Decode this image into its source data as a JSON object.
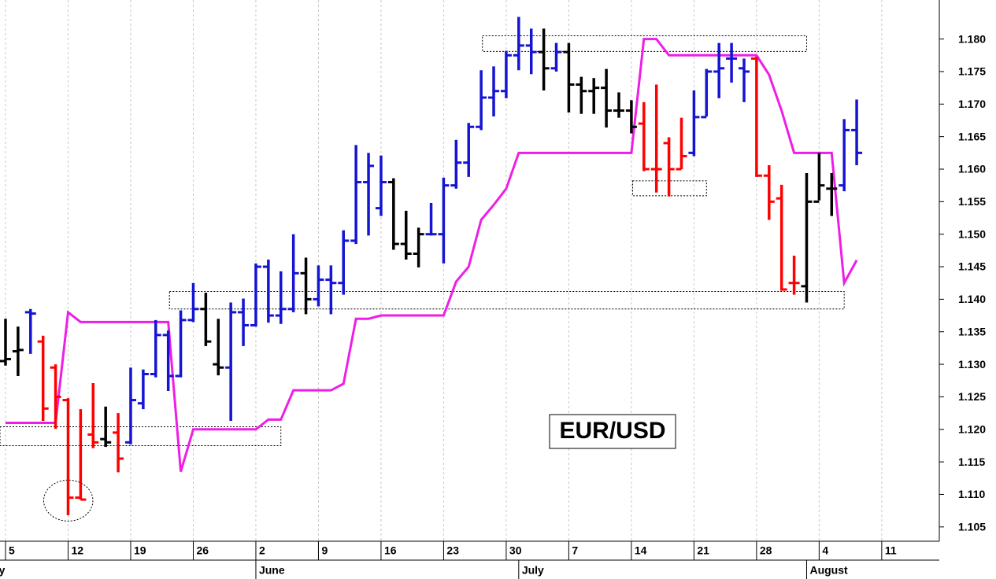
{
  "chart_data": {
    "type": "ohlc",
    "label": "EUR/USD",
    "x": [
      0,
      1,
      2,
      3,
      4,
      5,
      6,
      7,
      8,
      9,
      10,
      11,
      12,
      13,
      14,
      15,
      16,
      17,
      18,
      19,
      20,
      21,
      22,
      23,
      24,
      25,
      26,
      27,
      28,
      29,
      30,
      31,
      32,
      33,
      34,
      35,
      36,
      37,
      38,
      39,
      40,
      41,
      42,
      43,
      44,
      45,
      46,
      47,
      48,
      49,
      50,
      51,
      52,
      53,
      54,
      55,
      56,
      57,
      58,
      59,
      60,
      61,
      62,
      63,
      64,
      65,
      66,
      67,
      68
    ],
    "open": [
      1.1305,
      1.132,
      1.138,
      1.1335,
      1.1295,
      1.1245,
      1.1095,
      1.1192,
      1.1185,
      1.1195,
      1.118,
      1.124,
      1.1285,
      1.1345,
      1.1282,
      1.1368,
      1.1385,
      1.13,
      1.1295,
      1.138,
      1.136,
      1.145,
      1.1375,
      1.1385,
      1.144,
      1.14,
      1.143,
      1.1425,
      1.149,
      1.158,
      1.154,
      1.158,
      1.1485,
      1.147,
      1.15,
      1.15,
      1.1575,
      1.161,
      1.1665,
      1.171,
      1.172,
      1.1775,
      1.179,
      1.178,
      1.1755,
      1.178,
      1.173,
      1.172,
      1.1725,
      1.169,
      1.169,
      1.167,
      1.16,
      1.164,
      1.16,
      1.1625,
      1.168,
      1.175,
      1.177,
      1.1755,
      1.177,
      1.159,
      1.1555,
      1.1425,
      1.142,
      1.155,
      1.157,
      1.1575,
      1.166
    ],
    "high": [
      1.137,
      1.1358,
      1.1385,
      1.1344,
      1.13,
      1.1248,
      1.1231,
      1.1271,
      1.1235,
      1.1225,
      1.1295,
      1.1292,
      1.1368,
      1.1352,
      1.1383,
      1.1425,
      1.141,
      1.137,
      1.1395,
      1.1401,
      1.1455,
      1.1461,
      1.1443,
      1.15,
      1.1464,
      1.1452,
      1.1452,
      1.1506,
      1.1637,
      1.1625,
      1.1621,
      1.1586,
      1.1536,
      1.151,
      1.1548,
      1.1587,
      1.1645,
      1.1671,
      1.1752,
      1.1758,
      1.1782,
      1.1834,
      1.1816,
      1.1816,
      1.1794,
      1.1794,
      1.1742,
      1.174,
      1.1754,
      1.1718,
      1.1706,
      1.1703,
      1.173,
      1.1649,
      1.1679,
      1.1721,
      1.1754,
      1.1794,
      1.1794,
      1.177,
      1.1773,
      1.1606,
      1.1576,
      1.1467,
      1.1594,
      1.1625,
      1.1594,
      1.1677,
      1.1707
    ],
    "low": [
      1.1298,
      1.1282,
      1.1316,
      1.1213,
      1.1201,
      1.1068,
      1.1092,
      1.1171,
      1.1173,
      1.1134,
      1.1177,
      1.1231,
      1.128,
      1.1259,
      1.128,
      1.1365,
      1.1328,
      1.1283,
      1.1213,
      1.1328,
      1.1358,
      1.1364,
      1.1362,
      1.138,
      1.1377,
      1.1389,
      1.1377,
      1.1407,
      1.1485,
      1.1498,
      1.1528,
      1.1476,
      1.1461,
      1.1449,
      1.1498,
      1.1455,
      1.157,
      1.1588,
      1.166,
      1.1681,
      1.1709,
      1.1752,
      1.1746,
      1.1721,
      1.175,
      1.1687,
      1.1685,
      1.1685,
      1.1664,
      1.1679,
      1.1655,
      1.1597,
      1.1564,
      1.1558,
      1.16,
      1.162,
      1.1681,
      1.1709,
      1.1733,
      1.1703,
      1.1588,
      1.1522,
      1.1413,
      1.1407,
      1.1395,
      1.1552,
      1.1528,
      1.1566,
      1.1606
    ],
    "close": [
      1.1308,
      1.1322,
      1.1378,
      1.1232,
      1.125,
      1.1095,
      1.1092,
      1.118,
      1.118,
      1.1155,
      1.1245,
      1.1285,
      1.1345,
      1.1282,
      1.1368,
      1.1385,
      1.1335,
      1.1295,
      1.138,
      1.136,
      1.145,
      1.1375,
      1.1385,
      1.144,
      1.14,
      1.143,
      1.1425,
      1.149,
      1.158,
      1.1605,
      1.158,
      1.1485,
      1.147,
      1.15,
      1.15,
      1.1575,
      1.161,
      1.1665,
      1.171,
      1.172,
      1.1775,
      1.179,
      1.178,
      1.1755,
      1.178,
      1.173,
      1.172,
      1.1725,
      1.169,
      1.169,
      1.1665,
      1.16,
      1.16,
      1.16,
      1.162,
      1.168,
      1.175,
      1.1755,
      1.177,
      1.175,
      1.159,
      1.155,
      1.1415,
      1.1425,
      1.155,
      1.1575,
      1.157,
      1.166,
      1.1625
    ],
    "colors": [
      "#000000",
      "#000000",
      "#1414d2",
      "#ff0000",
      "#ff0000",
      "#ff0000",
      "#ff0000",
      "#ff0000",
      "#000000",
      "#ff0000",
      "#1414d2",
      "#1414d2",
      "#1414d2",
      "#1414d2",
      "#1414d2",
      "#1414d2",
      "#000000",
      "#000000",
      "#1414d2",
      "#1414d2",
      "#1414d2",
      "#1414d2",
      "#1414d2",
      "#1414d2",
      "#000000",
      "#1414d2",
      "#1414d2",
      "#1414d2",
      "#1414d2",
      "#1414d2",
      "#1414d2",
      "#000000",
      "#000000",
      "#000000",
      "#1414d2",
      "#1414d2",
      "#1414d2",
      "#1414d2",
      "#1414d2",
      "#1414d2",
      "#1414d2",
      "#1414d2",
      "#1414d2",
      "#000000",
      "#1414d2",
      "#000000",
      "#000000",
      "#000000",
      "#000000",
      "#000000",
      "#000000",
      "#ff0000",
      "#ff0000",
      "#ff0000",
      "#ff0000",
      "#1414d2",
      "#1414d2",
      "#1414d2",
      "#1414d2",
      "#1414d2",
      "#ff0000",
      "#ff0000",
      "#ff0000",
      "#ff0000",
      "#000000",
      "#000000",
      "#000000",
      "#1414d2",
      "#1414d2"
    ],
    "lines": [
      {
        "color": "#ee1ee6",
        "values": [
          1.121,
          1.121,
          1.121,
          1.121,
          1.121,
          1.138,
          1.1365,
          1.1365,
          1.1365,
          1.1365,
          1.1365,
          1.1365,
          1.1365,
          1.1365,
          1.1135,
          1.12,
          1.12,
          1.12,
          1.12,
          1.12,
          1.12,
          1.1215,
          1.1215,
          1.126,
          1.126,
          1.126,
          1.126,
          1.127,
          1.137,
          1.137,
          1.1375,
          1.1375,
          1.1375,
          1.1375,
          1.1375,
          1.1375,
          1.1427,
          1.145,
          1.1522,
          1.1545,
          1.157,
          1.1625,
          1.1625,
          1.1625,
          1.1625,
          1.1625,
          1.1625,
          1.1625,
          1.1625,
          1.1625,
          1.1625,
          1.18,
          1.18,
          1.1775,
          1.1775,
          1.1775,
          1.1775,
          1.1775,
          1.1775,
          1.1775,
          1.1775,
          1.1745,
          1.169,
          1.1625,
          1.1625,
          1.1625,
          1.1625,
          1.1425,
          1.146
        ]
      }
    ],
    "zones": [
      {
        "shape": "rect",
        "x": [
          -0.44,
          22
        ],
        "y": [
          1.1175,
          1.1204
        ]
      },
      {
        "shape": "rect",
        "x": [
          13.1,
          67
        ],
        "y": [
          1.1385,
          1.1412
        ]
      },
      {
        "shape": "rect",
        "x": [
          38.1,
          64
        ],
        "y": [
          1.1781,
          1.1805
        ]
      },
      {
        "shape": "rect",
        "x": [
          50.1,
          56
        ],
        "y": [
          1.1559,
          1.1582
        ]
      },
      {
        "shape": "ellipse",
        "x": [
          3.05,
          6.98
        ],
        "y": [
          1.1059,
          1.1122
        ]
      }
    ],
    "xlim": [
      -0.44,
      74.6
    ],
    "ylim": [
      1.1028,
      1.186
    ],
    "xticks": [
      {
        "value": 0,
        "label": "5"
      },
      {
        "value": 5,
        "label": "12"
      },
      {
        "value": 10,
        "label": "19"
      },
      {
        "value": 15,
        "label": "26"
      },
      {
        "value": 20,
        "label": "2"
      },
      {
        "value": 25,
        "label": "9"
      },
      {
        "value": 30,
        "label": "16"
      },
      {
        "value": 35,
        "label": "23"
      },
      {
        "value": 40,
        "label": "30"
      },
      {
        "value": 45,
        "label": "7"
      },
      {
        "value": 50,
        "label": "14"
      },
      {
        "value": 55,
        "label": "21"
      },
      {
        "value": 60,
        "label": "28"
      },
      {
        "value": 65,
        "label": "4"
      },
      {
        "value": 70,
        "label": "11"
      }
    ],
    "month_ticks": [
      {
        "value": -2,
        "label": "May"
      },
      {
        "value": 20,
        "label": "June"
      },
      {
        "value": 41,
        "label": "July"
      },
      {
        "value": 64,
        "label": "August"
      }
    ],
    "yticks": [
      1.105,
      {
        "value": 1.11,
        "label": "1.110"
      },
      1.115,
      {
        "value": 1.12,
        "label": "1.120"
      },
      1.125,
      {
        "value": 1.13,
        "label": "1.130"
      },
      1.135,
      {
        "value": 1.14,
        "label": "1.140"
      },
      1.145,
      {
        "value": 1.15,
        "label": "1.150"
      },
      1.155,
      {
        "value": 1.16,
        "label": "1.160"
      },
      1.165,
      {
        "value": 1.17,
        "label": "1.170"
      },
      1.175,
      {
        "value": 1.18,
        "label": "1.180"
      }
    ],
    "grid": true
  }
}
